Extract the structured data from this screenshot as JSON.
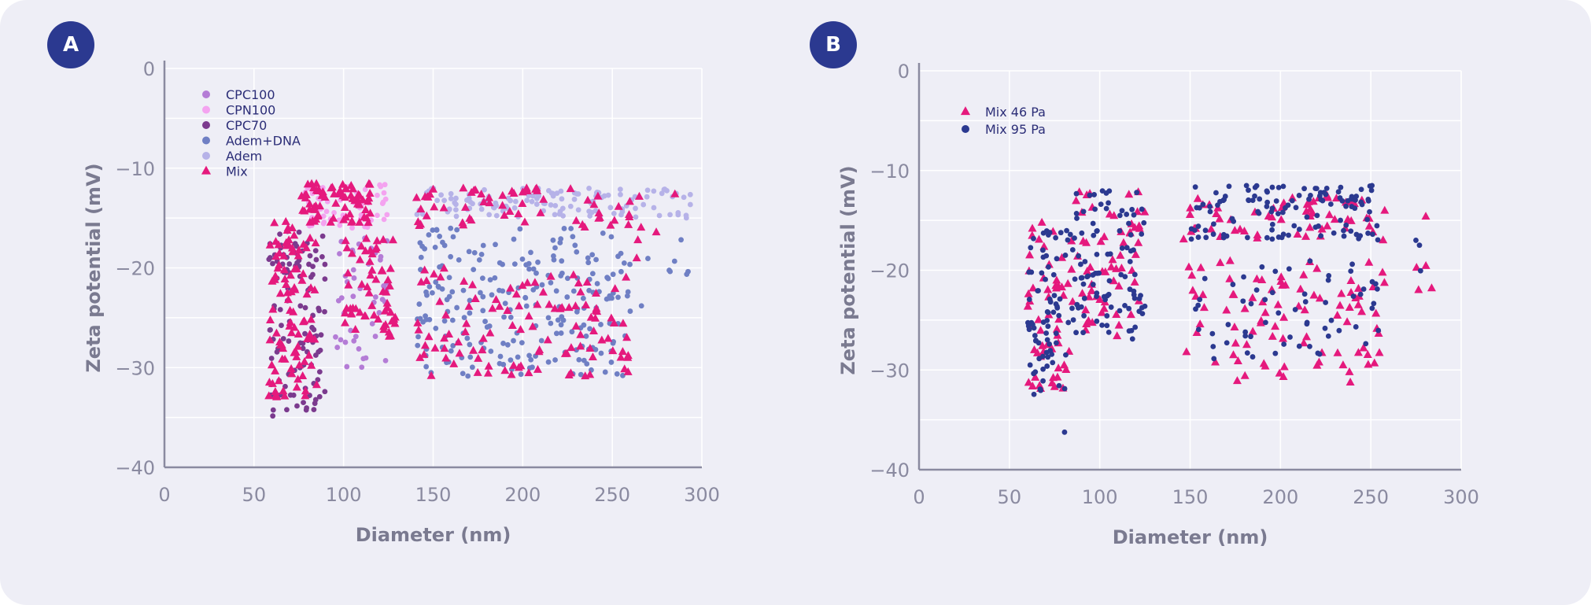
{
  "chart_data": [
    {
      "panel_label": "A",
      "type": "scatter",
      "xlabel": "Diameter (nm)",
      "ylabel": "Zeta potential (mV)",
      "xlim": [
        0,
        300
      ],
      "ylim": [
        -40,
        0
      ],
      "x_ticks": [
        0,
        50,
        100,
        150,
        200,
        250,
        300
      ],
      "y_ticks": [
        0,
        -10,
        -20,
        -30,
        -40
      ],
      "grid": true,
      "legend_position": "top-left",
      "series": [
        {
          "name": "CPC100",
          "marker": "circle",
          "color": "#b47cd6",
          "clusters": [
            {
              "x": [
                95,
                128
              ],
              "y": [
                -30,
                -17
              ],
              "n": 45
            }
          ]
        },
        {
          "name": "CPN100",
          "marker": "circle",
          "color": "#f4a3f0",
          "clusters": [
            {
              "x": [
                78,
                125
              ],
              "y": [
                -16,
                -11.5
              ],
              "n": 60
            }
          ]
        },
        {
          "name": "CPC70",
          "marker": "circle",
          "color": "#7b3a8e",
          "clusters": [
            {
              "x": [
                58,
                90
              ],
              "y": [
                -35,
                -16
              ],
              "n": 110
            }
          ]
        },
        {
          "name": "Adem+DNA",
          "marker": "circle",
          "color": "#6f7fc4",
          "clusters": [
            {
              "x": [
                140,
                260
              ],
              "y": [
                -31,
                -16
              ],
              "n": 230
            },
            {
              "x": [
                250,
                295
              ],
              "y": [
                -24,
                -16
              ],
              "n": 10
            }
          ]
        },
        {
          "name": "Adem",
          "marker": "circle",
          "color": "#b6b2e8",
          "clusters": [
            {
              "x": [
                140,
                295
              ],
              "y": [
                -15,
                -12
              ],
              "n": 130
            }
          ]
        },
        {
          "name": "Mix",
          "marker": "triangle",
          "color": "#e5197d",
          "clusters": [
            {
              "x": [
                58,
                85
              ],
              "y": [
                -33,
                -15
              ],
              "n": 100
            },
            {
              "x": [
                75,
                115
              ],
              "y": [
                -15.5,
                -11.5
              ],
              "n": 70
            },
            {
              "x": [
                100,
                130
              ],
              "y": [
                -27,
                -17
              ],
              "n": 60
            },
            {
              "x": [
                140,
                260
              ],
              "y": [
                -16,
                -12
              ],
              "n": 60
            },
            {
              "x": [
                140,
                260
              ],
              "y": [
                -31,
                -20
              ],
              "n": 110
            },
            {
              "x": [
                260,
                285
              ],
              "y": [
                -21.5,
                -12.5
              ],
              "n": 6
            }
          ]
        }
      ]
    },
    {
      "panel_label": "B",
      "type": "scatter",
      "xlabel": "Diameter (nm)",
      "ylabel": "Zeta potential (mV)",
      "xlim": [
        0,
        300
      ],
      "ylim": [
        -40,
        0
      ],
      "x_ticks": [
        0,
        50,
        100,
        150,
        200,
        250,
        300
      ],
      "y_ticks": [
        0,
        -10,
        -20,
        -30,
        -40
      ],
      "grid": true,
      "legend_position": "top-left",
      "series": [
        {
          "name": "Mix 46 Pa",
          "marker": "triangle",
          "color": "#e5197d",
          "clusters": [
            {
              "x": [
                60,
                85
              ],
              "y": [
                -32,
                -15
              ],
              "n": 55
            },
            {
              "x": [
                85,
                125
              ],
              "y": [
                -27,
                -12
              ],
              "n": 60
            },
            {
              "x": [
                145,
                258
              ],
              "y": [
                -17,
                -12.5
              ],
              "n": 60
            },
            {
              "x": [
                145,
                258
              ],
              "y": [
                -31.5,
                -19
              ],
              "n": 90
            },
            {
              "x": [
                270,
                290
              ],
              "y": [
                -22,
                -13
              ],
              "n": 5
            }
          ]
        },
        {
          "name": "Mix 95 Pa",
          "marker": "circle",
          "color": "#2b3990",
          "clusters": [
            {
              "x": [
                60,
                85
              ],
              "y": [
                -32.5,
                -16
              ],
              "n": 75
            },
            {
              "x": [
                85,
                125
              ],
              "y": [
                -27,
                -11.8
              ],
              "n": 95
            },
            {
              "x": [
                150,
                255
              ],
              "y": [
                -17,
                -11.5
              ],
              "n": 120
            },
            {
              "x": [
                150,
                255
              ],
              "y": [
                -29,
                -19
              ],
              "n": 60
            },
            {
              "x": [
                265,
                280
              ],
              "y": [
                -21,
                -15.5
              ],
              "n": 3
            },
            {
              "x": [
                79,
                81
              ],
              "y": [
                -36.5,
                -36
              ],
              "n": 1
            }
          ]
        }
      ]
    }
  ]
}
